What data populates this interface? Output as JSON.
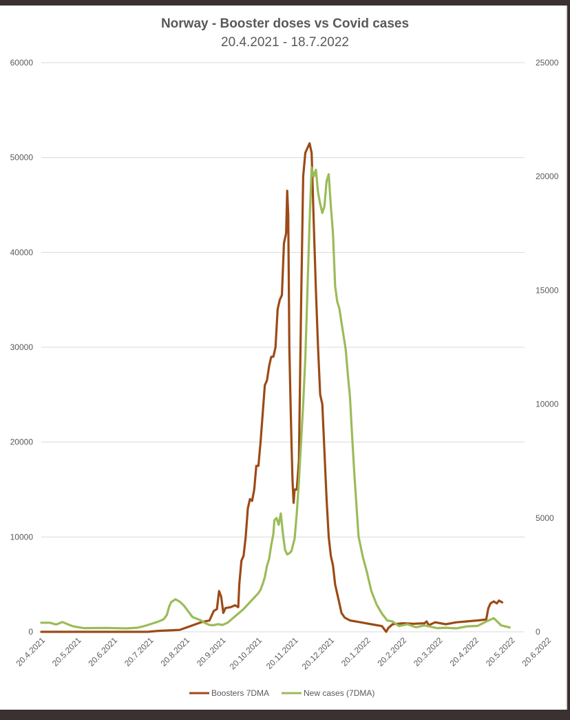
{
  "chart_data": {
    "type": "line",
    "title": "Norway - Booster doses vs Covid cases",
    "subtitle": "20.4.2021 - 18.7.2022",
    "x_tick_labels": [
      "20.4.2021",
      "20.5.2021",
      "20.6.2021",
      "20.7.2021",
      "20.8.2021",
      "20.9.2021",
      "20.10.2021",
      "20.11.2021",
      "20.12.2021",
      "20.1.2022",
      "20.2.2022",
      "20.3.2022",
      "20.4.2022",
      "20.5.2022",
      "20.6.2022"
    ],
    "y_left": {
      "ticks": [
        0,
        10000,
        20000,
        30000,
        40000,
        50000,
        60000
      ],
      "ylim": [
        0,
        60000
      ]
    },
    "y_right": {
      "ticks": [
        0,
        5000,
        10000,
        15000,
        20000,
        25000
      ],
      "ylim": [
        0,
        25000
      ]
    },
    "grid": "horizontal",
    "legend_position": "bottom",
    "x_range_days": [
      0,
      454
    ],
    "colors": {
      "boosters": "#9c4a16",
      "cases": "#9bbb59",
      "grid": "#d9d9d9",
      "text": "#595959"
    },
    "series": [
      {
        "name": "Boosters 7DMA",
        "axis": "left",
        "points": [
          [
            0,
            0
          ],
          [
            100,
            0
          ],
          [
            110,
            100
          ],
          [
            130,
            200
          ],
          [
            140,
            600
          ],
          [
            150,
            1000
          ],
          [
            158,
            1200
          ],
          [
            162,
            2200
          ],
          [
            165,
            2400
          ],
          [
            167,
            4300
          ],
          [
            169,
            3700
          ],
          [
            171,
            2000
          ],
          [
            173,
            2500
          ],
          [
            178,
            2600
          ],
          [
            182,
            2800
          ],
          [
            185,
            2600
          ],
          [
            186,
            5000
          ],
          [
            188,
            7500
          ],
          [
            190,
            8000
          ],
          [
            192,
            10000
          ],
          [
            194,
            13000
          ],
          [
            196,
            14000
          ],
          [
            198,
            13800
          ],
          [
            200,
            15000
          ],
          [
            202,
            17500
          ],
          [
            204,
            17500
          ],
          [
            206,
            20000
          ],
          [
            208,
            23000
          ],
          [
            210,
            26000
          ],
          [
            212,
            26500
          ],
          [
            214,
            28000
          ],
          [
            216,
            29000
          ],
          [
            218,
            29000
          ],
          [
            220,
            30000
          ],
          [
            222,
            34000
          ],
          [
            224,
            35000
          ],
          [
            226,
            35500
          ],
          [
            228,
            41000
          ],
          [
            230,
            42000
          ],
          [
            231,
            46500
          ],
          [
            232,
            44000
          ],
          [
            233,
            30000
          ],
          [
            234,
            25000
          ],
          [
            235,
            20000
          ],
          [
            236,
            16000
          ],
          [
            237,
            13600
          ],
          [
            238,
            15000
          ],
          [
            240,
            15000
          ],
          [
            242,
            18000
          ],
          [
            244,
            34000
          ],
          [
            246,
            48000
          ],
          [
            248,
            50500
          ],
          [
            250,
            51000
          ],
          [
            252,
            51500
          ],
          [
            254,
            50500
          ],
          [
            256,
            43000
          ],
          [
            258,
            36000
          ],
          [
            260,
            30000
          ],
          [
            262,
            25000
          ],
          [
            264,
            24000
          ],
          [
            266,
            19000
          ],
          [
            268,
            14000
          ],
          [
            270,
            10000
          ],
          [
            272,
            8000
          ],
          [
            274,
            7000
          ],
          [
            276,
            5000
          ],
          [
            278,
            4000
          ],
          [
            280,
            3000
          ],
          [
            282,
            2000
          ],
          [
            285,
            1500
          ],
          [
            290,
            1200
          ],
          [
            300,
            1000
          ],
          [
            310,
            800
          ],
          [
            320,
            600
          ],
          [
            324,
            0
          ],
          [
            326,
            400
          ],
          [
            330,
            800
          ],
          [
            340,
            900
          ],
          [
            350,
            850
          ],
          [
            360,
            900
          ],
          [
            362,
            1100
          ],
          [
            364,
            700
          ],
          [
            370,
            1000
          ],
          [
            380,
            800
          ],
          [
            390,
            1000
          ],
          [
            400,
            1100
          ],
          [
            410,
            1200
          ],
          [
            418,
            1300
          ],
          [
            420,
            2500
          ],
          [
            422,
            3000
          ],
          [
            425,
            3200
          ],
          [
            428,
            3000
          ],
          [
            430,
            3300
          ],
          [
            433,
            3100
          ]
        ]
      },
      {
        "name": "New cases (7DMA)",
        "axis": "right",
        "points": [
          [
            0,
            400
          ],
          [
            8,
            400
          ],
          [
            14,
            320
          ],
          [
            20,
            430
          ],
          [
            26,
            310
          ],
          [
            30,
            240
          ],
          [
            40,
            160
          ],
          [
            60,
            170
          ],
          [
            80,
            150
          ],
          [
            90,
            180
          ],
          [
            95,
            230
          ],
          [
            100,
            300
          ],
          [
            110,
            450
          ],
          [
            115,
            550
          ],
          [
            118,
            750
          ],
          [
            120,
            1100
          ],
          [
            122,
            1300
          ],
          [
            126,
            1430
          ],
          [
            130,
            1330
          ],
          [
            134,
            1150
          ],
          [
            138,
            900
          ],
          [
            142,
            650
          ],
          [
            150,
            500
          ],
          [
            154,
            380
          ],
          [
            158,
            300
          ],
          [
            162,
            290
          ],
          [
            166,
            340
          ],
          [
            170,
            300
          ],
          [
            175,
            400
          ],
          [
            180,
            600
          ],
          [
            185,
            800
          ],
          [
            190,
            1000
          ],
          [
            195,
            1250
          ],
          [
            200,
            1500
          ],
          [
            204,
            1700
          ],
          [
            206,
            1850
          ],
          [
            208,
            2100
          ],
          [
            210,
            2400
          ],
          [
            212,
            2900
          ],
          [
            214,
            3200
          ],
          [
            216,
            3800
          ],
          [
            218,
            4300
          ],
          [
            219,
            4900
          ],
          [
            221,
            5000
          ],
          [
            223,
            4700
          ],
          [
            225,
            5200
          ],
          [
            227,
            4300
          ],
          [
            229,
            3600
          ],
          [
            231,
            3400
          ],
          [
            233,
            3450
          ],
          [
            235,
            3550
          ],
          [
            238,
            4100
          ],
          [
            240,
            5200
          ],
          [
            242,
            6600
          ],
          [
            244,
            8300
          ],
          [
            246,
            10000
          ],
          [
            248,
            12000
          ],
          [
            250,
            15000
          ],
          [
            252,
            18000
          ],
          [
            254,
            20400
          ],
          [
            256,
            20000
          ],
          [
            258,
            20300
          ],
          [
            260,
            19300
          ],
          [
            262,
            18800
          ],
          [
            264,
            18400
          ],
          [
            266,
            18700
          ],
          [
            268,
            19800
          ],
          [
            270,
            20100
          ],
          [
            272,
            18700
          ],
          [
            274,
            17500
          ],
          [
            276,
            15200
          ],
          [
            278,
            14500
          ],
          [
            280,
            14200
          ],
          [
            282,
            13600
          ],
          [
            284,
            13000
          ],
          [
            286,
            12400
          ],
          [
            288,
            11300
          ],
          [
            290,
            10300
          ],
          [
            292,
            8600
          ],
          [
            294,
            7000
          ],
          [
            296,
            5600
          ],
          [
            298,
            4200
          ],
          [
            302,
            3300
          ],
          [
            306,
            2600
          ],
          [
            310,
            1800
          ],
          [
            315,
            1200
          ],
          [
            320,
            800
          ],
          [
            325,
            500
          ],
          [
            330,
            450
          ],
          [
            336,
            250
          ],
          [
            344,
            330
          ],
          [
            352,
            200
          ],
          [
            360,
            280
          ],
          [
            366,
            220
          ],
          [
            372,
            160
          ],
          [
            380,
            180
          ],
          [
            390,
            150
          ],
          [
            400,
            240
          ],
          [
            410,
            260
          ],
          [
            418,
            450
          ],
          [
            425,
            600
          ],
          [
            432,
            280
          ],
          [
            440,
            190
          ]
        ]
      }
    ]
  }
}
